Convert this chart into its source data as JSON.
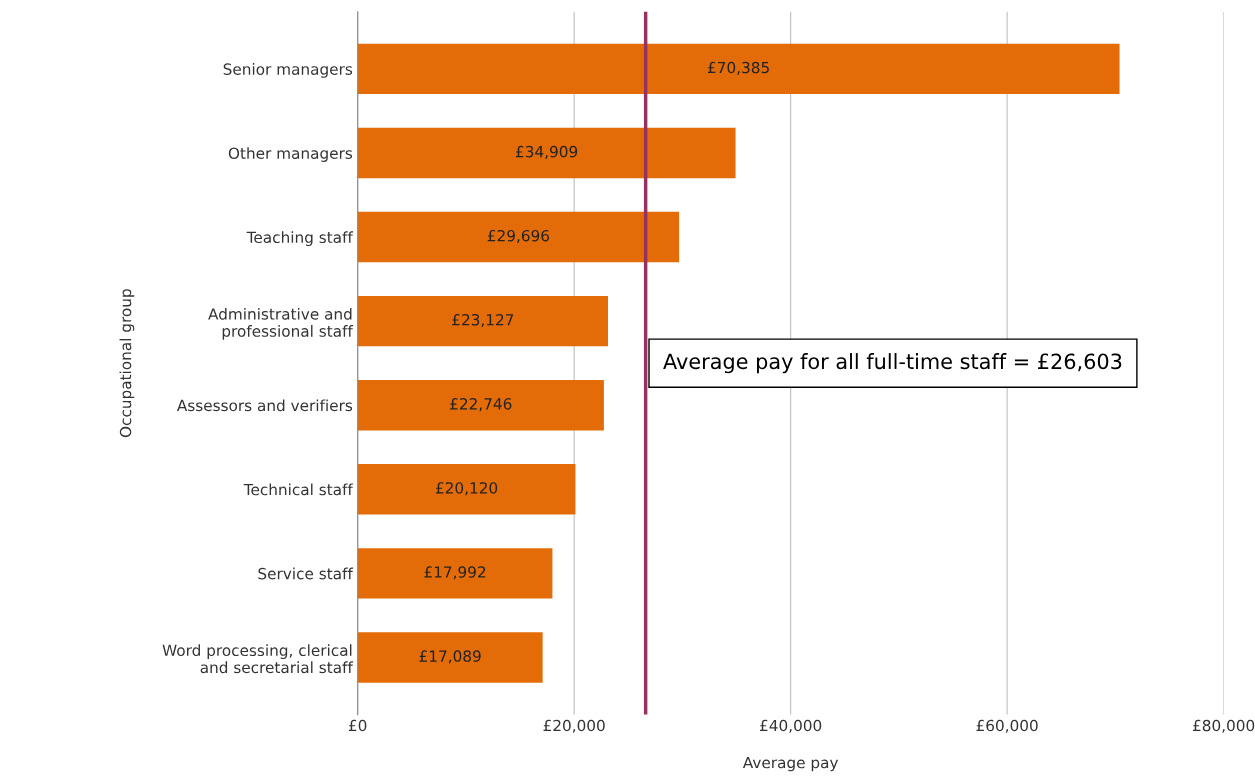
{
  "chart_data": {
    "type": "bar",
    "orientation": "horizontal",
    "xlabel": "Average pay",
    "ylabel": "Occupational group",
    "categories": [
      "Senior managers",
      "Other managers",
      "Teaching staff",
      "Administrative and\nprofessional staff",
      "Assessors and verifiers",
      "Technical staff",
      "Service staff",
      "Word processing, clerical\nand secretarial staff"
    ],
    "values": [
      70385,
      34909,
      29696,
      23127,
      22746,
      20120,
      17992,
      17089
    ],
    "value_labels": [
      "£70,385",
      "£34,909",
      "£29,696",
      "£23,127",
      "£22,746",
      "£20,120",
      "£17,992",
      "£17,089"
    ],
    "color": "#e36c09",
    "xlim": [
      0,
      80000
    ],
    "xticks": [
      {
        "value": 0,
        "label": "£0"
      },
      {
        "value": 20000,
        "label": "£20,000"
      },
      {
        "value": 40000,
        "label": "£40,000"
      },
      {
        "value": 60000,
        "label": "£60,000"
      },
      {
        "value": 80000,
        "label": "£80,000"
      }
    ],
    "grid": "x",
    "legend": false,
    "ref_lines": [
      {
        "axis": "x",
        "value": 26603,
        "label": "Average pay for all full-time staff = £26,603",
        "color": "#953163",
        "line_style": "solid"
      }
    ]
  }
}
